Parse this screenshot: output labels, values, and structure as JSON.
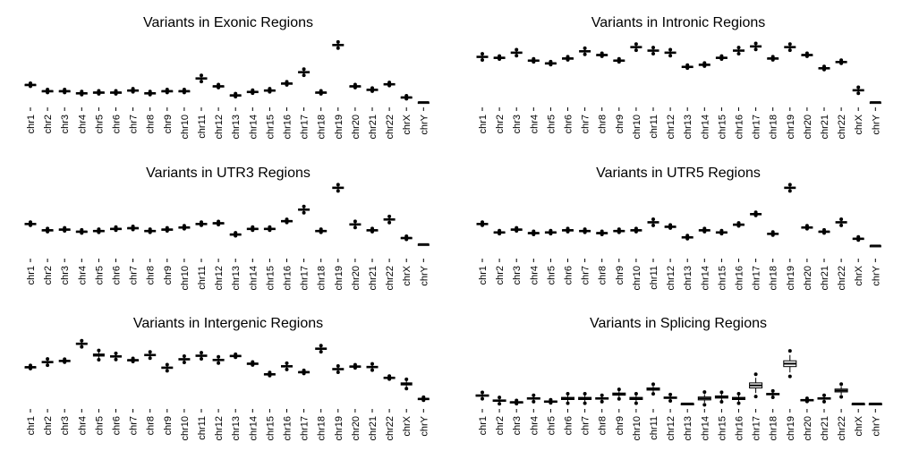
{
  "chart_data": [
    {
      "type": "boxplot",
      "title": "Variants in Exonic Regions",
      "categories": [
        "chr1",
        "chr2",
        "chr3",
        "chr4",
        "chr5",
        "chr6",
        "chr7",
        "chr8",
        "chr9",
        "chr10",
        "chr11",
        "chr12",
        "chr13",
        "chr14",
        "chr15",
        "chr16",
        "chr17",
        "chr18",
        "chr19",
        "chr20",
        "chr21",
        "chr22",
        "chrX",
        "chrY"
      ],
      "medians": [
        0.22,
        0.13,
        0.13,
        0.1,
        0.11,
        0.11,
        0.14,
        0.1,
        0.13,
        0.13,
        0.31,
        0.2,
        0.07,
        0.12,
        0.14,
        0.24,
        0.4,
        0.11,
        0.79,
        0.2,
        0.15,
        0.23,
        0.04,
        -0.03
      ],
      "spreads": [
        0.01,
        0.01,
        0.01,
        0.01,
        0.01,
        0.01,
        0.01,
        0.01,
        0.01,
        0.01,
        0.02,
        0.01,
        0.01,
        0.01,
        0.01,
        0.01,
        0.02,
        0.01,
        0.02,
        0.01,
        0.01,
        0.01,
        0.01,
        0.0
      ],
      "ylim": [
        -0.08,
        1.0
      ]
    },
    {
      "type": "boxplot",
      "title": "Variants in Intronic Regions",
      "categories": [
        "chr1",
        "chr2",
        "chr3",
        "chr4",
        "chr5",
        "chr6",
        "chr7",
        "chr8",
        "chr9",
        "chr10",
        "chr11",
        "chr12",
        "chr13",
        "chr14",
        "chr15",
        "chr16",
        "chr17",
        "chr18",
        "chr19",
        "chr20",
        "chr21",
        "chr22",
        "chrX",
        "chrY"
      ],
      "medians": [
        0.62,
        0.61,
        0.68,
        0.57,
        0.53,
        0.6,
        0.7,
        0.65,
        0.57,
        0.76,
        0.71,
        0.68,
        0.48,
        0.51,
        0.61,
        0.71,
        0.77,
        0.6,
        0.76,
        0.65,
        0.46,
        0.55,
        0.14,
        -0.03
      ],
      "spreads": [
        0.02,
        0.01,
        0.02,
        0.01,
        0.01,
        0.01,
        0.02,
        0.01,
        0.01,
        0.02,
        0.02,
        0.02,
        0.01,
        0.01,
        0.01,
        0.02,
        0.02,
        0.01,
        0.02,
        0.01,
        0.01,
        0.01,
        0.02,
        0.0
      ],
      "ylim": [
        -0.08,
        1.0
      ]
    },
    {
      "type": "boxplot",
      "title": "Variants in UTR3 Regions",
      "categories": [
        "chr1",
        "chr2",
        "chr3",
        "chr4",
        "chr5",
        "chr6",
        "chr7",
        "chr8",
        "chr9",
        "chr10",
        "chr11",
        "chr12",
        "chr13",
        "chr14",
        "chr15",
        "chr16",
        "chr17",
        "chr18",
        "chr19",
        "chr20",
        "chr21",
        "chr22",
        "chrX",
        "chrY"
      ],
      "medians": [
        0.39,
        0.3,
        0.31,
        0.28,
        0.29,
        0.32,
        0.33,
        0.29,
        0.31,
        0.34,
        0.39,
        0.4,
        0.24,
        0.32,
        0.32,
        0.43,
        0.59,
        0.29,
        0.9,
        0.38,
        0.3,
        0.45,
        0.19,
        0.1
      ],
      "spreads": [
        0.01,
        0.01,
        0.01,
        0.01,
        0.01,
        0.01,
        0.01,
        0.01,
        0.01,
        0.01,
        0.01,
        0.01,
        0.01,
        0.01,
        0.01,
        0.01,
        0.02,
        0.01,
        0.02,
        0.02,
        0.01,
        0.02,
        0.01,
        0.0
      ],
      "ylim": [
        -0.08,
        1.0
      ]
    },
    {
      "type": "boxplot",
      "title": "Variants in UTR5 Regions",
      "categories": [
        "chr1",
        "chr2",
        "chr3",
        "chr4",
        "chr5",
        "chr6",
        "chr7",
        "chr8",
        "chr9",
        "chr10",
        "chr11",
        "chr12",
        "chr13",
        "chr14",
        "chr15",
        "chr16",
        "chr17",
        "chr18",
        "chr19",
        "chr20",
        "chr21",
        "chr22",
        "chrX",
        "chrY"
      ],
      "medians": [
        0.39,
        0.27,
        0.31,
        0.26,
        0.27,
        0.3,
        0.29,
        0.26,
        0.29,
        0.3,
        0.41,
        0.35,
        0.2,
        0.3,
        0.27,
        0.38,
        0.53,
        0.25,
        0.9,
        0.34,
        0.28,
        0.41,
        0.18,
        0.08
      ],
      "spreads": [
        0.01,
        0.01,
        0.01,
        0.01,
        0.01,
        0.01,
        0.01,
        0.01,
        0.01,
        0.01,
        0.02,
        0.01,
        0.01,
        0.01,
        0.01,
        0.01,
        0.01,
        0.01,
        0.02,
        0.01,
        0.01,
        0.02,
        0.01,
        0.0
      ],
      "ylim": [
        -0.08,
        1.0
      ]
    },
    {
      "type": "boxplot",
      "title": "Variants in Intergenic Regions",
      "categories": [
        "chr1",
        "chr2",
        "chr3",
        "chr4",
        "chr5",
        "chr6",
        "chr7",
        "chr8",
        "chr9",
        "chr10",
        "chr11",
        "chr12",
        "chr13",
        "chr14",
        "chr15",
        "chr16",
        "chr17",
        "chr18",
        "chr19",
        "chr20",
        "chr21",
        "chr22",
        "chrX",
        "chrY"
      ],
      "medians": [
        0.49,
        0.56,
        0.58,
        0.82,
        0.66,
        0.64,
        0.59,
        0.66,
        0.48,
        0.6,
        0.65,
        0.59,
        0.65,
        0.54,
        0.39,
        0.5,
        0.42,
        0.75,
        0.46,
        0.5,
        0.49,
        0.34,
        0.25,
        0.04
      ],
      "spreads": [
        0.01,
        0.02,
        0.01,
        0.02,
        0.03,
        0.02,
        0.01,
        0.02,
        0.02,
        0.02,
        0.02,
        0.02,
        0.01,
        0.01,
        0.01,
        0.02,
        0.01,
        0.02,
        0.02,
        0.01,
        0.02,
        0.01,
        0.03,
        0.01
      ],
      "ylim": [
        -0.08,
        1.0
      ]
    },
    {
      "type": "boxplot",
      "title": "Variants in Splicing Regions",
      "categories": [
        "chr1",
        "chr2",
        "chr3",
        "chr4",
        "chr5",
        "chr6",
        "chr7",
        "chr8",
        "chr9",
        "chr10",
        "chr11",
        "chr12",
        "chr13",
        "chr14",
        "chr15",
        "chr16",
        "chr17",
        "chr18",
        "chr19",
        "chr20",
        "chr21",
        "chr22",
        "chrX",
        "chrY"
      ],
      "medians": [
        0.11,
        0.04,
        0.02,
        0.07,
        0.03,
        0.07,
        0.07,
        0.07,
        0.13,
        0.07,
        0.2,
        0.08,
        0.0,
        0.07,
        0.09,
        0.07,
        0.25,
        0.13,
        0.55,
        0.05,
        0.07,
        0.18,
        0.0,
        0.0
      ],
      "spreads": [
        0.02,
        0.02,
        0.01,
        0.02,
        0.01,
        0.03,
        0.03,
        0.02,
        0.03,
        0.03,
        0.03,
        0.02,
        0.0,
        0.04,
        0.03,
        0.03,
        0.07,
        0.02,
        0.08,
        0.01,
        0.02,
        0.04,
        0.0,
        0.0
      ],
      "ylim": [
        -0.05,
        1.0
      ]
    }
  ]
}
